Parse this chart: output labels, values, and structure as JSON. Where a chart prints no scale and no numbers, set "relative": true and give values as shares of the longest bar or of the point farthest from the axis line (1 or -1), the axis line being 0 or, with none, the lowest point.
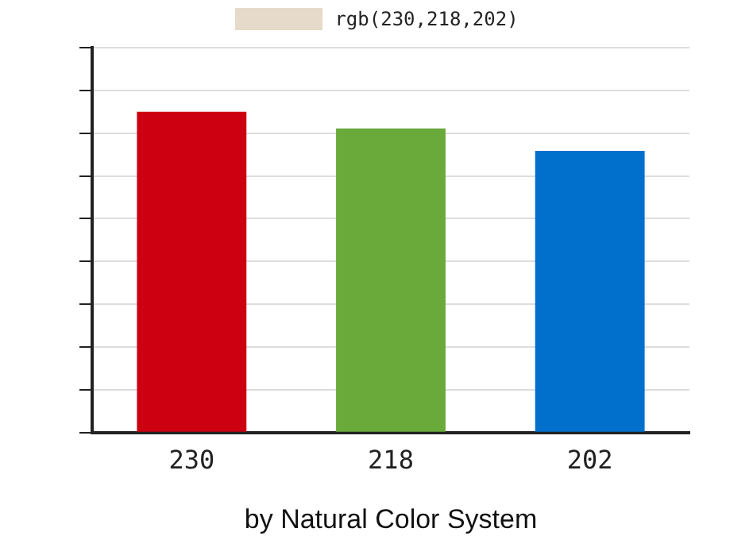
{
  "chart_data": {
    "type": "bar",
    "xlabel": "by Natural Color System",
    "categories": [
      "230",
      "218",
      "202"
    ],
    "relative": true,
    "grid": "y",
    "legend": "top",
    "series": [
      {
        "name": "rgb(230,218,202)",
        "color": "#e6daca",
        "colors": [
          "#cc0010",
          "#6aaa3a",
          "#0070cc"
        ],
        "values": [
          1,
          0.948,
          0.878
        ]
      }
    ]
  }
}
